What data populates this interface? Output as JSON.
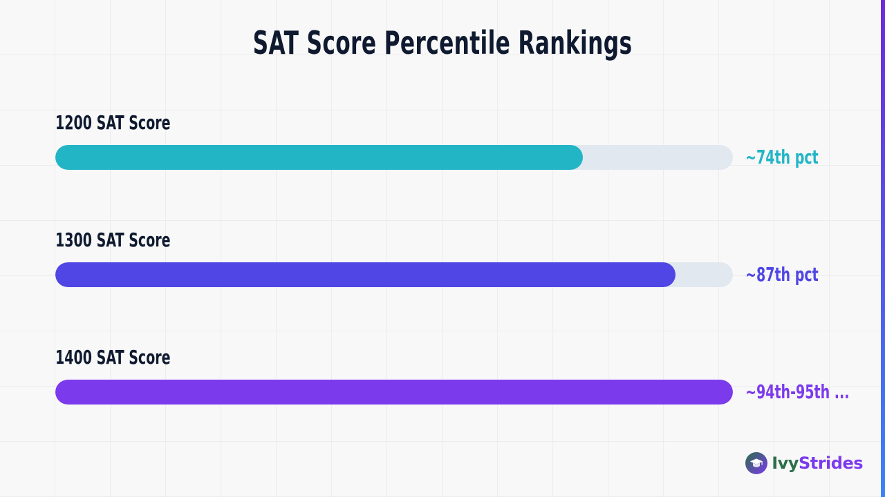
{
  "title": "SAT Score Percentile Rankings",
  "brand": {
    "name_part1": "Ivy",
    "name_part2": "Strides",
    "icon": "graduation-cap-icon",
    "color1": "#2c6e4a",
    "color2": "#7c3aed"
  },
  "colors": {
    "track": "#e2e8f0",
    "stripe_top": "#6d28d9",
    "stripe_bottom": "#3b82f6"
  },
  "chart_data": {
    "type": "bar",
    "orientation": "horizontal",
    "title": "SAT Score Percentile Rankings",
    "xlim": [
      0,
      95
    ],
    "categories": [
      "1200 SAT Score",
      "1300 SAT Score",
      "1400 SAT Score"
    ],
    "values": [
      74,
      87,
      95
    ],
    "data_labels": [
      "~74th pct",
      "~87th pct",
      "~94th-95th ..."
    ],
    "colors": [
      "#22b5c6",
      "#4f46e5",
      "#7c3aed"
    ],
    "grid": true,
    "legend": false
  }
}
